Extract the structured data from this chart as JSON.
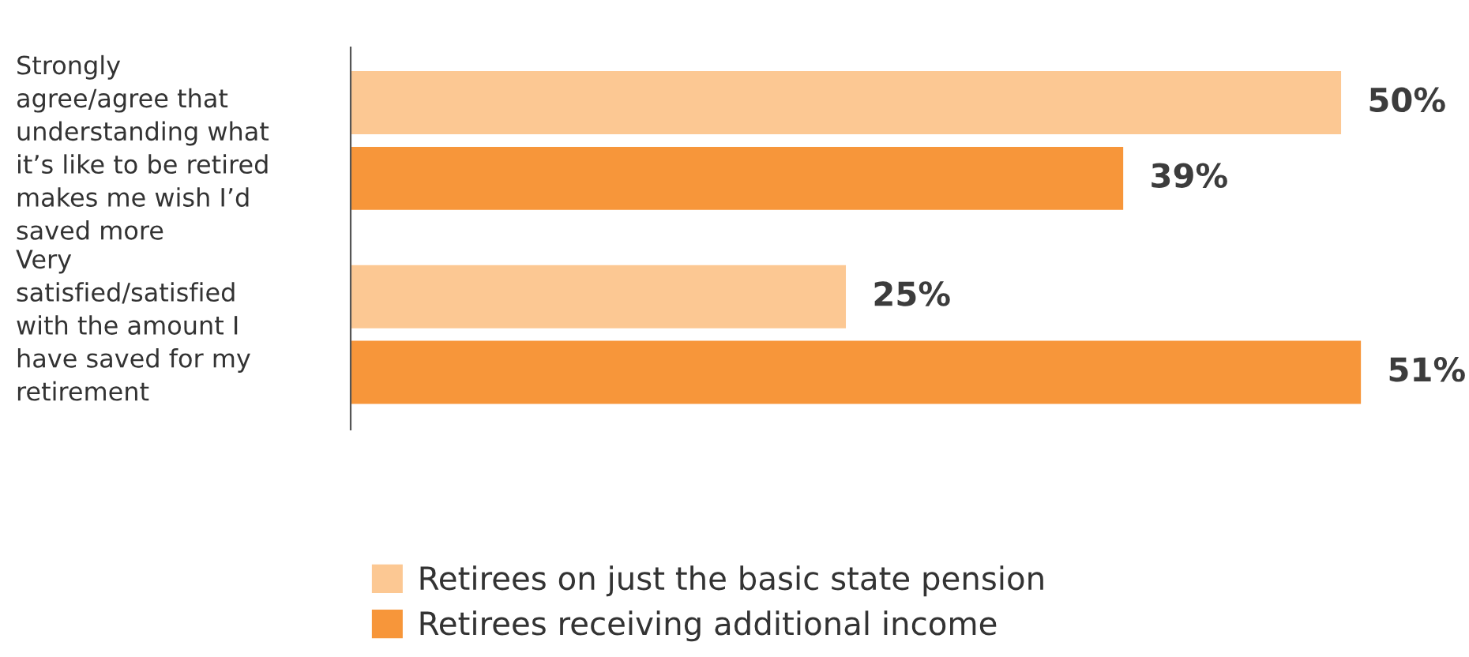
{
  "chart_data": {
    "type": "bar",
    "orientation": "horizontal",
    "categories": [
      "Strongly agree/agree that understanding what it’s like to be retired makes me wish I’d saved more",
      "Very satisfied/satisfied with the amount I have saved for my retirement"
    ],
    "series": [
      {
        "name": "Retirees on just the basic state pension",
        "color": "#fcc893",
        "values": [
          50,
          25
        ],
        "value_labels": [
          "50%",
          "25%"
        ]
      },
      {
        "name": "Retirees receiving additional income",
        "color": "#f7963a",
        "values": [
          39,
          51
        ],
        "value_labels": [
          "39%",
          "51%"
        ]
      }
    ],
    "legend": "bottom"
  }
}
